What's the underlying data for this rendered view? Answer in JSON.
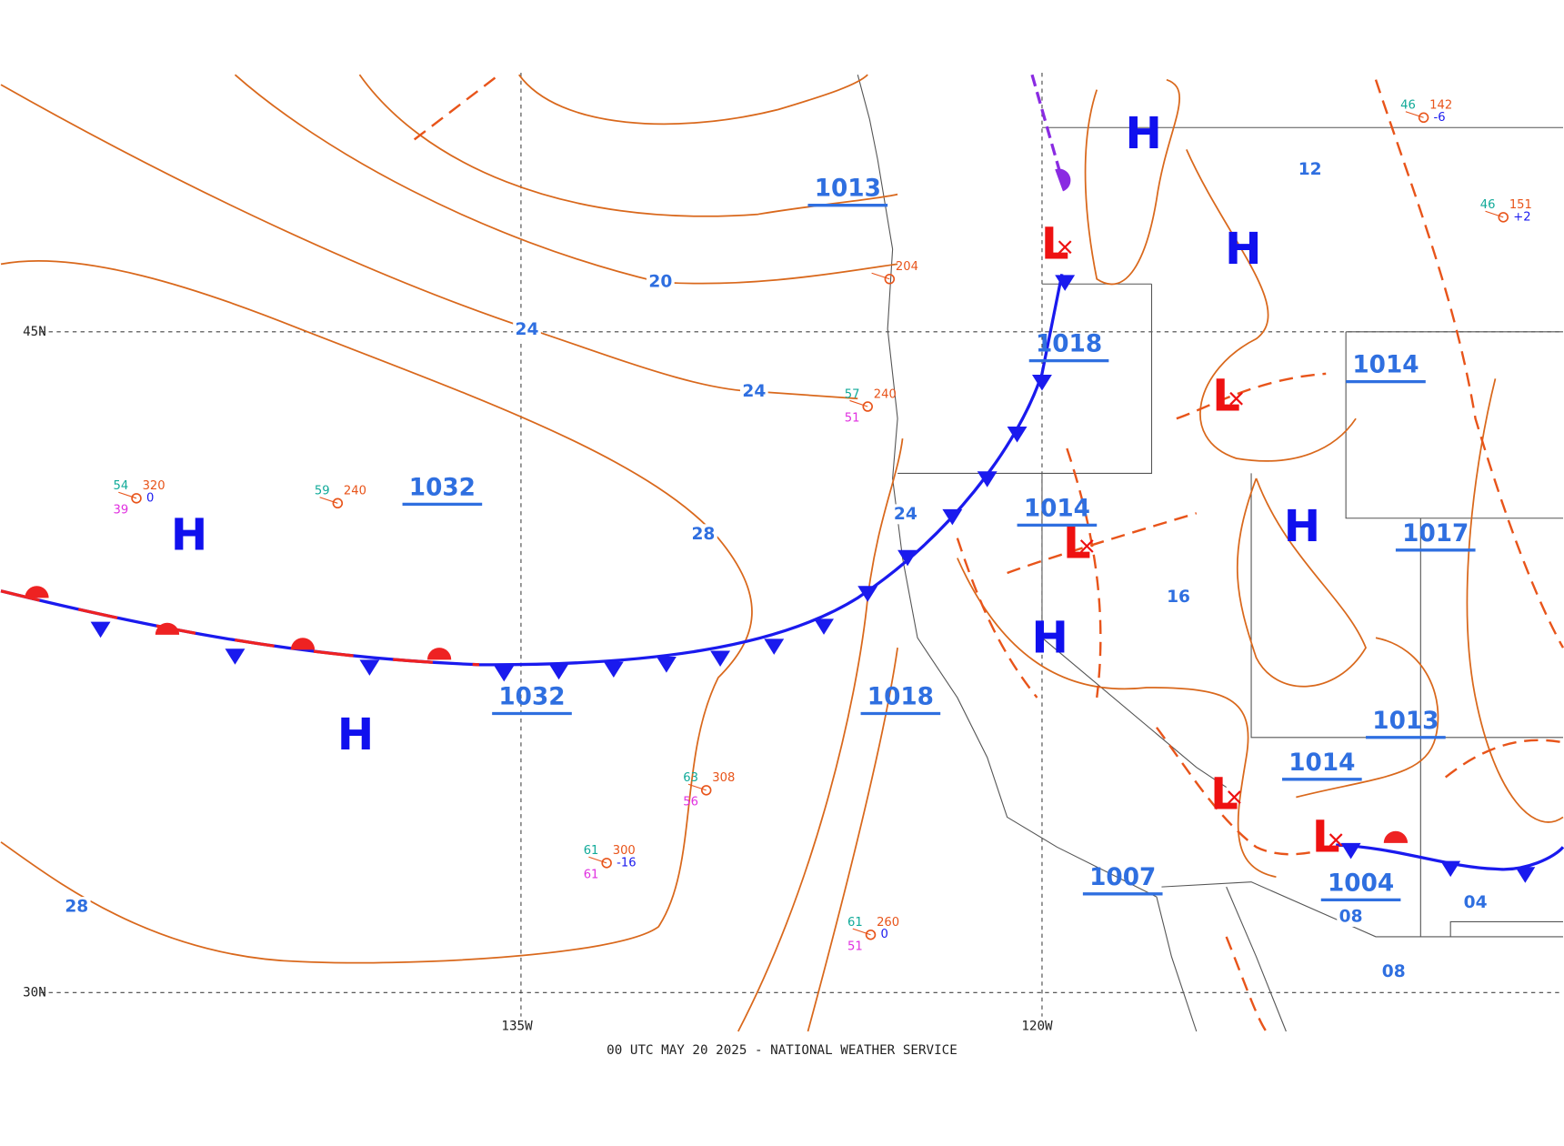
{
  "footer": "00 UTC MAY 20 2025 - NATIONAL WEATHER SERVICE",
  "latitude_labels": [
    "45N",
    "30N"
  ],
  "longitude_labels": [
    "135W",
    "120W"
  ],
  "pressure_centers": [
    "H",
    "H",
    "H",
    "H",
    "H",
    "H",
    "L",
    "L",
    "L",
    "L",
    "L"
  ],
  "central_pressures": [
    "1013",
    "1018",
    "1032",
    "1032",
    "1014",
    "1018",
    "1014",
    "1017",
    "1013",
    "1014",
    "1007",
    "1004"
  ],
  "isobar_labels": [
    "20",
    "24",
    "24",
    "24",
    "28",
    "28",
    "16",
    "12",
    "08",
    "04",
    "08"
  ],
  "stations": [
    {
      "temp": "54",
      "pressure": "320",
      "dew": "39",
      "change": "0"
    },
    {
      "temp": "59",
      "pressure": "240"
    },
    {
      "temp": "63",
      "pressure": "308",
      "dew": "56"
    },
    {
      "temp": "61",
      "pressure": "300",
      "dew": "61",
      "change": "-16"
    },
    {
      "temp": "61",
      "pressure": "260",
      "dew": "51",
      "change": "0"
    },
    {
      "temp": "57",
      "pressure": "240",
      "dew": "51"
    },
    {
      "pressure": "204"
    },
    {
      "temp": "46",
      "pressure": "142",
      "change": "-6"
    },
    {
      "temp": "46",
      "pressure": "151",
      "change": "+2"
    }
  ]
}
